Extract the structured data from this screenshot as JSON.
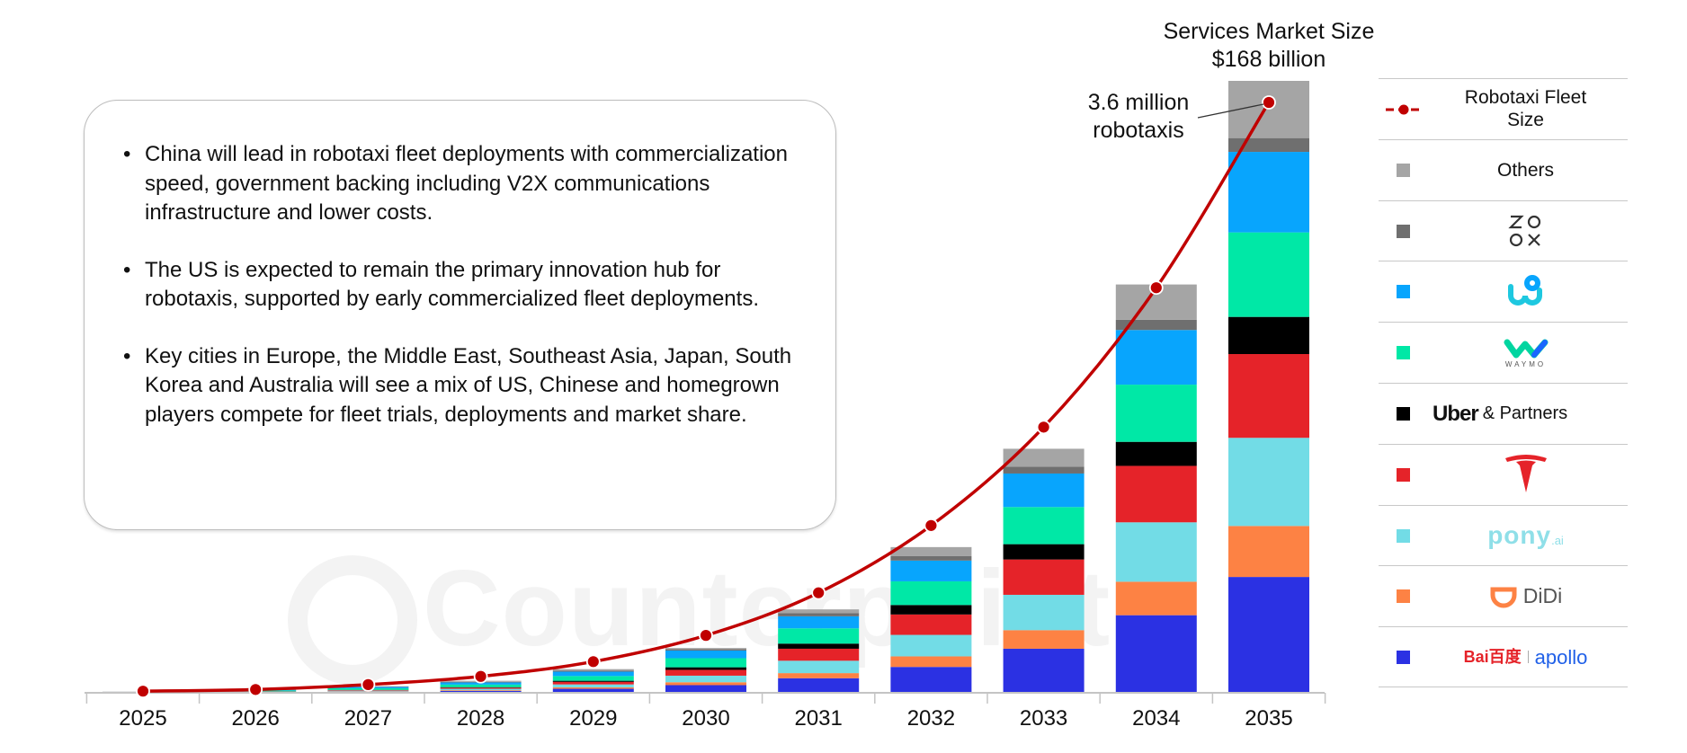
{
  "watermark": {
    "text": "Counterpoint"
  },
  "textbox": {
    "bullets": [
      "China will lead in robotaxi fleet deployments with commercialization speed, government backing including V2X communications infrastructure and lower costs.",
      "The US is expected to remain the primary innovation hub for robotaxis, supported by early commercialized fleet deployments.",
      "Key cities in Europe, the Middle East, Southeast Asia, Japan, South Korea and Australia will see a mix of US, Chinese and homegrown players compete for fleet trials, deployments and market share."
    ]
  },
  "annotations": {
    "market_size_line1": "Services Market Size",
    "market_size_line2": "$168 billion",
    "fleet_line1": "3.6 million",
    "fleet_line2": "robotaxis"
  },
  "legend": {
    "fleet_label": "Robotaxi Fleet Size",
    "others_label": "Others",
    "zoox_logo": "ZOOX",
    "weride_logo": "WeRide",
    "waymo_logo": "WAYMO",
    "uber_logo": "Uber",
    "uber_suffix": "& Partners",
    "tesla_logo": "Tesla",
    "pony_logo": "pony",
    "pony_suffix": ".ai",
    "didi_logo": "DiDi",
    "baidu_logo": "Bai百度",
    "apollo_logo": "apollo"
  },
  "chart_data": {
    "type": "bar",
    "stacked": true,
    "categories": [
      "2025",
      "2026",
      "2027",
      "2028",
      "2029",
      "2030",
      "2031",
      "2032",
      "2033",
      "2034",
      "2035"
    ],
    "unit": "$ billion (services market size, estimated from bar heights)",
    "series": [
      {
        "name": "Baidu Apollo",
        "color": "#2b31e3",
        "values": [
          0.05,
          0.15,
          0.3,
          0.5,
          1.1,
          2.1,
          4.0,
          7.1,
          12.1,
          21.3,
          31.8
        ]
      },
      {
        "name": "DiDi",
        "color": "#fd8244",
        "values": [
          0,
          0.05,
          0.1,
          0.2,
          0.4,
          0.8,
          1.4,
          2.9,
          5.1,
          9.2,
          14.0
        ]
      },
      {
        "name": "Pony.ai",
        "color": "#72dce6",
        "values": [
          0.05,
          0.1,
          0.2,
          0.4,
          0.8,
          1.8,
          3.4,
          5.9,
          9.7,
          16.3,
          24.2
        ]
      },
      {
        "name": "Tesla",
        "color": "#e52329",
        "values": [
          0,
          0.05,
          0.15,
          0.3,
          0.7,
          1.6,
          3.3,
          5.6,
          9.7,
          15.5,
          23.0
        ]
      },
      {
        "name": "Uber & Partners",
        "color": "#000000",
        "values": [
          0,
          0.05,
          0.05,
          0.15,
          0.3,
          0.7,
          1.4,
          2.6,
          4.2,
          6.6,
          10.2
        ]
      },
      {
        "name": "Waymo",
        "color": "#00e8a6",
        "values": [
          0.1,
          0.25,
          0.45,
          0.7,
          1.3,
          2.5,
          4.2,
          6.5,
          10.2,
          15.7,
          23.2
        ]
      },
      {
        "name": "WeRide",
        "color": "#08a5fd",
        "values": [
          0.05,
          0.15,
          0.35,
          0.6,
          1.2,
          2.1,
          3.3,
          5.7,
          9.2,
          15.0,
          22.1
        ]
      },
      {
        "name": "Zoox",
        "color": "#6f6f6f",
        "values": [
          0.03,
          0.05,
          0.1,
          0.15,
          0.3,
          0.4,
          0.9,
          1.2,
          1.9,
          2.8,
          3.8
        ]
      },
      {
        "name": "Others",
        "color": "#a5a5a5",
        "values": [
          0.02,
          0.05,
          0.1,
          0.3,
          0.4,
          0.3,
          1.0,
          2.5,
          4.9,
          9.7,
          15.7
        ]
      }
    ],
    "line": {
      "name": "Robotaxi Fleet Size",
      "unit": "million",
      "color": "#c00000",
      "values": [
        0.01,
        0.02,
        0.05,
        0.1,
        0.19,
        0.35,
        0.61,
        1.02,
        1.62,
        2.47,
        3.6
      ]
    },
    "total_2035": 168,
    "ylim_bars": [
      0,
      168
    ],
    "ylim_line": [
      0,
      3.6
    ],
    "y_axis_shown": false,
    "grid": false,
    "legend_position": "right"
  }
}
